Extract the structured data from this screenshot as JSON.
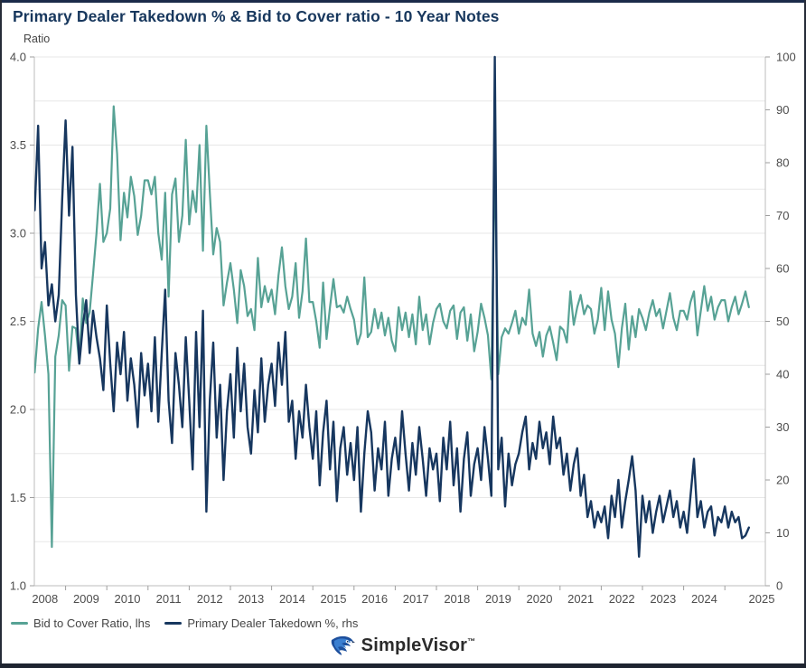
{
  "brand": {
    "name": "SimpleVisor",
    "tm": "™"
  },
  "chart_data": {
    "type": "line",
    "title": "Primary Dealer Takedown % & Bid to Cover ratio - 10 Year Notes",
    "y_left_label": "Ratio",
    "left_axis": {
      "min": 1.0,
      "max": 4.0,
      "label_step": 0.5,
      "grid_step": 0.25
    },
    "right_axis": {
      "min": 0,
      "max": 100,
      "label_step": 10
    },
    "x_axis": {
      "first_label_year": 2008,
      "last_label_year": 2025,
      "tick_years_start": 2009,
      "tick_years_end": 2025
    },
    "legend_position": "bottom-left",
    "grid": "horizontal-only",
    "series": [
      {
        "name": "Bid to Cover Ratio, lhs",
        "axis": "left",
        "color": "#57a295",
        "width": 2.2,
        "start_year": 2008.25,
        "step_years": 0.0833333,
        "values": [
          2.21,
          2.46,
          2.61,
          2.42,
          2.2,
          1.22,
          2.3,
          2.42,
          2.62,
          2.59,
          2.22,
          2.47,
          2.46,
          2.26,
          2.63,
          2.49,
          2.55,
          2.77,
          3.0,
          3.28,
          2.95,
          3.0,
          3.14,
          3.72,
          3.45,
          2.96,
          3.23,
          3.09,
          3.32,
          3.21,
          2.99,
          3.1,
          3.3,
          3.3,
          3.22,
          3.32,
          3.0,
          2.85,
          3.23,
          2.64,
          3.22,
          3.31,
          2.95,
          3.1,
          3.53,
          3.05,
          3.24,
          3.12,
          3.5,
          2.9,
          3.61,
          3.23,
          2.88,
          3.03,
          2.95,
          2.59,
          2.72,
          2.83,
          2.68,
          2.49,
          2.79,
          2.7,
          2.53,
          2.57,
          2.45,
          2.86,
          2.58,
          2.7,
          2.61,
          2.68,
          2.54,
          2.76,
          2.92,
          2.7,
          2.57,
          2.64,
          2.83,
          2.52,
          2.67,
          2.97,
          2.61,
          2.61,
          2.5,
          2.35,
          2.72,
          2.4,
          2.58,
          2.74,
          2.58,
          2.59,
          2.55,
          2.64,
          2.57,
          2.51,
          2.37,
          2.43,
          2.75,
          2.41,
          2.44,
          2.57,
          2.46,
          2.55,
          2.42,
          2.52,
          2.39,
          2.33,
          2.58,
          2.45,
          2.55,
          2.41,
          2.54,
          2.37,
          2.64,
          2.45,
          2.54,
          2.37,
          2.49,
          2.57,
          2.6,
          2.5,
          2.46,
          2.56,
          2.59,
          2.4,
          2.55,
          2.58,
          2.39,
          2.54,
          2.33,
          2.44,
          2.6,
          2.52,
          2.42,
          2.17,
          3.46,
          2.2,
          2.41,
          2.46,
          2.43,
          2.49,
          2.56,
          2.43,
          2.52,
          2.48,
          2.68,
          2.43,
          2.36,
          2.44,
          2.3,
          2.42,
          2.47,
          2.38,
          2.28,
          2.47,
          2.45,
          2.38,
          2.67,
          2.48,
          2.58,
          2.65,
          2.54,
          2.59,
          2.57,
          2.43,
          2.51,
          2.69,
          2.45,
          2.67,
          2.51,
          2.43,
          2.24,
          2.46,
          2.6,
          2.34,
          2.53,
          2.41,
          2.57,
          2.52,
          2.45,
          2.55,
          2.62,
          2.53,
          2.57,
          2.46,
          2.56,
          2.66,
          2.52,
          2.45,
          2.56,
          2.56,
          2.51,
          2.61,
          2.67,
          2.42,
          2.56,
          2.7,
          2.56,
          2.64,
          2.51,
          2.58,
          2.62,
          2.62,
          2.5,
          2.58,
          2.64,
          2.54,
          2.6,
          2.67,
          2.58
        ]
      },
      {
        "name": "Primary Dealer Takedown %, rhs",
        "axis": "right",
        "color": "#17375f",
        "width": 2.4,
        "start_year": 2008.25,
        "step_years": 0.0833333,
        "values": [
          71,
          87,
          60,
          65,
          53,
          57,
          50,
          55,
          73,
          88,
          70,
          83,
          55,
          42,
          49,
          54,
          44,
          52,
          47,
          43,
          37,
          53,
          42,
          33,
          46,
          40,
          48,
          35,
          43,
          38,
          30,
          44,
          36,
          42,
          33,
          47,
          31,
          44,
          56,
          35,
          27,
          44,
          38,
          30,
          47,
          35,
          22,
          48,
          30,
          52,
          14,
          35,
          46,
          28,
          38,
          20,
          33,
          40,
          28,
          45,
          33,
          42,
          30,
          25,
          37,
          29,
          43,
          31,
          38,
          42,
          34,
          46,
          38,
          48,
          31,
          35,
          24,
          33,
          28,
          38,
          30,
          24,
          33,
          19,
          29,
          35,
          22,
          31,
          16,
          26,
          30,
          21,
          27,
          20,
          30,
          14,
          25,
          33,
          29,
          18,
          26,
          22,
          31,
          17,
          24,
          28,
          22,
          33,
          25,
          18,
          27,
          21,
          30,
          24,
          17,
          26,
          22,
          25,
          16,
          28,
          22,
          31,
          19,
          26,
          14,
          24,
          29,
          17,
          23,
          26,
          20,
          30,
          24,
          17,
          100,
          22,
          28,
          15,
          25,
          19,
          23,
          25,
          29,
          32,
          22,
          27,
          24,
          31,
          26,
          29,
          23,
          32,
          26,
          28,
          21,
          25,
          18,
          23,
          26,
          17,
          21,
          13,
          16,
          11,
          14,
          12,
          15,
          9,
          17,
          13,
          20,
          11,
          16,
          20,
          24.5,
          18,
          5.5,
          17,
          12,
          16,
          10,
          14,
          17,
          12,
          15,
          18,
          13,
          16,
          11,
          14,
          10,
          17,
          24,
          13,
          16,
          11,
          14,
          15,
          9.5,
          13,
          12,
          15,
          11,
          14,
          12,
          13,
          9,
          9.5,
          11
        ]
      }
    ]
  }
}
